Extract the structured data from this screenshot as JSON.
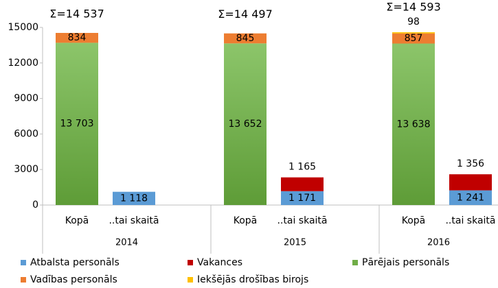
{
  "chart_data": {
    "type": "stacked_bar",
    "groups": [
      "2014",
      "2015",
      "2016"
    ],
    "categories": [
      "Kopā",
      "..tai skaitā",
      "Kopā",
      "..tai skaitā",
      "Kopā",
      "..tai skaitā"
    ],
    "annotations": [
      "Σ=14 537",
      "Σ=14 497",
      "Σ=14 593"
    ],
    "series": [
      {
        "name": "Atbalsta personāls",
        "color": "#5b9bd5",
        "values": [
          null,
          1118,
          null,
          1171,
          null,
          1241
        ],
        "value_labels": [
          null,
          "1 118",
          null,
          "1 171",
          null,
          "1 241"
        ],
        "label_position": "center"
      },
      {
        "name": "Vakances",
        "color": "#c00000",
        "values": [
          null,
          null,
          null,
          1165,
          null,
          1356
        ],
        "value_labels": [
          null,
          null,
          null,
          "1 165",
          null,
          "1 356"
        ],
        "label_position": "outside_end"
      },
      {
        "name": "Pārējais personāls",
        "color": "#70ad47",
        "values": [
          13703,
          null,
          13652,
          null,
          13638,
          null
        ],
        "value_labels": [
          "13 703",
          null,
          "13 652",
          null,
          "13 638",
          null
        ],
        "label_position": "center"
      },
      {
        "name": "Vadības personāls",
        "color": "#ed7d31",
        "values": [
          834,
          null,
          845,
          null,
          857,
          null
        ],
        "value_labels": [
          "834",
          null,
          "845",
          null,
          "857",
          null
        ],
        "label_position": "center"
      },
      {
        "name": "Iekšējās drošības birojs",
        "color": "#ffc000",
        "values": [
          null,
          null,
          null,
          null,
          98,
          null
        ],
        "value_labels": [
          null,
          null,
          null,
          null,
          "98",
          null
        ],
        "label_position": "outside_end"
      }
    ],
    "ylim": [
      0,
      15000
    ],
    "yticks": [
      0,
      3000,
      6000,
      9000,
      12000,
      15000
    ],
    "grid": false
  }
}
